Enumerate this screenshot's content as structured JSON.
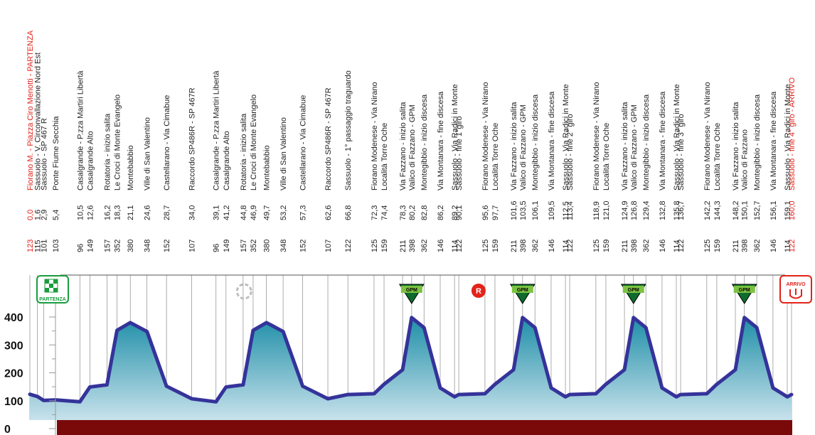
{
  "chart_data": {
    "type": "area",
    "title": "",
    "xlabel": "",
    "ylabel": "",
    "ylim": [
      0,
      480
    ],
    "xlim": [
      0,
      160
    ],
    "yticks": [
      "0",
      "100",
      "200",
      "300",
      "400"
    ],
    "grid": true,
    "colors": {
      "area_top": "#1f8fa8",
      "area_bottom": "#c8e2ec",
      "line": "#35339a",
      "base": "#7a0a0a",
      "accent": "#e2231a",
      "gpm": "#0d6b2c"
    },
    "points": [
      {
        "km": "0,0",
        "x": 0.0,
        "alt": "123",
        "y": 123,
        "label": "Fiorano M. - Piazza Ciro Menotti - PARTENZA",
        "red": true
      },
      {
        "km": "1,6",
        "x": 1.6,
        "alt": "115",
        "y": 115,
        "label": "Sassuolo - V. Circonvallazione Nord Est"
      },
      {
        "km": "2,9",
        "x": 2.9,
        "alt": "101",
        "y": 101,
        "label": "Sassuolo - SP 467 R"
      },
      {
        "km": "5,4",
        "x": 5.4,
        "alt": "103",
        "y": 103,
        "label": "Ponte Fiume Secchia"
      },
      {
        "km": "10,5",
        "x": 10.5,
        "alt": "96",
        "y": 96,
        "label": "Casalgrande - P.zza Martiri Libertà"
      },
      {
        "km": "12,6",
        "x": 12.6,
        "alt": "149",
        "y": 149,
        "label": "Casalgrande Alto"
      },
      {
        "km": "16,2",
        "x": 16.2,
        "alt": "157",
        "y": 157,
        "label": "Rotatoria - inizio salita"
      },
      {
        "km": "18,3",
        "x": 18.3,
        "alt": "352",
        "y": 352,
        "label": "Le Croci di Monte Evangelo"
      },
      {
        "km": "21,1",
        "x": 21.1,
        "alt": "380",
        "y": 380,
        "label": "Montebabbio"
      },
      {
        "km": "24,6",
        "x": 24.6,
        "alt": "348",
        "y": 348,
        "label": "Ville di San Valentino"
      },
      {
        "km": "28,7",
        "x": 28.7,
        "alt": "152",
        "y": 152,
        "label": "Castellarano - Via Cimabue"
      },
      {
        "km": "34,0",
        "x": 34.0,
        "alt": "107",
        "y": 107,
        "label": "Raccordo SP486R - SP 467R"
      },
      {
        "km": "39,1",
        "x": 39.1,
        "alt": "96",
        "y": 96,
        "label": "Casalgrande - P.zza Martiri Libertà"
      },
      {
        "km": "41,2",
        "x": 41.2,
        "alt": "149",
        "y": 149,
        "label": "Casalgrande Alto"
      },
      {
        "km": "44,8",
        "x": 44.8,
        "alt": "157",
        "y": 157,
        "label": "Rotatoria - inizio salita"
      },
      {
        "km": "46,9",
        "x": 46.9,
        "alt": "352",
        "y": 352,
        "label": "Le Croci di Monte Evangelo"
      },
      {
        "km": "49,7",
        "x": 49.7,
        "alt": "380",
        "y": 380,
        "label": "Montebabbio"
      },
      {
        "km": "53,2",
        "x": 53.2,
        "alt": "348",
        "y": 348,
        "label": "Ville di San Valentino"
      },
      {
        "km": "57,3",
        "x": 57.3,
        "alt": "152",
        "y": 152,
        "label": "Castellarano - Via Cimabue"
      },
      {
        "km": "62,6",
        "x": 62.6,
        "alt": "107",
        "y": 107,
        "label": "Raccordo SP486R - SP 467R"
      },
      {
        "km": "66,8",
        "x": 66.8,
        "alt": "122",
        "y": 122,
        "label": "Sassuolo - 1° passaggio traguardo"
      },
      {
        "km": "72,3",
        "x": 72.3,
        "alt": "125",
        "y": 125,
        "label": "Fiorano Modenese - Via Nirano"
      },
      {
        "km": "74,4",
        "x": 74.4,
        "alt": "159",
        "y": 159,
        "label": "Località Torre Oche"
      },
      {
        "km": "78,3",
        "x": 78.3,
        "alt": "211",
        "y": 211,
        "label": "Via Fazzano - inizio salita"
      },
      {
        "km": "80,2",
        "x": 80.2,
        "alt": "398",
        "y": 398,
        "label": "Valico di Fazzano - GPM"
      },
      {
        "km": "82,8",
        "x": 82.8,
        "alt": "362",
        "y": 362,
        "label": "Montegibbio - inizio discesa"
      },
      {
        "km": "86,2",
        "x": 86.2,
        "alt": "146",
        "y": 146,
        "label": "Via Montanara - fine discesa"
      },
      {
        "km": "89,2",
        "x": 89.2,
        "alt": "114",
        "y": 114,
        "label": "Sassuolo - Via Radici in Monte"
      },
      {
        "km": "90,1",
        "x": 90.1,
        "alt": "122",
        "y": 122,
        "label": "Sassuolo - fine 1°giro"
      },
      {
        "km": "95,6",
        "x": 95.6,
        "alt": "125",
        "y": 125,
        "label": "Fiorano Modenese - Via Nirano"
      },
      {
        "km": "97,7",
        "x": 97.7,
        "alt": "159",
        "y": 159,
        "label": "Località Torre Oche"
      },
      {
        "km": "101,6",
        "x": 101.6,
        "alt": "211",
        "y": 211,
        "label": "Via Fazzano - inizio salita"
      },
      {
        "km": "103,5",
        "x": 103.5,
        "alt": "398",
        "y": 398,
        "label": "Valico di Fazzano - GPM"
      },
      {
        "km": "106,1",
        "x": 106.1,
        "alt": "362",
        "y": 362,
        "label": "Montegibbio - inizio discesa"
      },
      {
        "km": "109,5",
        "x": 109.5,
        "alt": "146",
        "y": 146,
        "label": "Via Montanara - fine discesa"
      },
      {
        "km": "112,5",
        "x": 112.5,
        "alt": "114",
        "y": 114,
        "label": "Sassuolo - Via Radici in Monte"
      },
      {
        "km": "113,4",
        "x": 113.4,
        "alt": "122",
        "y": 122,
        "label": "Sassuolo - fine 2° giro"
      },
      {
        "km": "118,9",
        "x": 118.9,
        "alt": "125",
        "y": 125,
        "label": "Fiorano Modenese - Via Nirano"
      },
      {
        "km": "121,0",
        "x": 121.0,
        "alt": "159",
        "y": 159,
        "label": "Località Torre Oche"
      },
      {
        "km": "124,9",
        "x": 124.9,
        "alt": "211",
        "y": 211,
        "label": "Via Fazzano - inizio salita"
      },
      {
        "km": "126,8",
        "x": 126.8,
        "alt": "398",
        "y": 398,
        "label": "Valico di Fazzano - GPM"
      },
      {
        "km": "129,4",
        "x": 129.4,
        "alt": "362",
        "y": 362,
        "label": "Montegibbio - inizio discesa"
      },
      {
        "km": "132,8",
        "x": 132.8,
        "alt": "146",
        "y": 146,
        "label": "Via Montanara - fine discesa"
      },
      {
        "km": "135,8",
        "x": 135.8,
        "alt": "114",
        "y": 114,
        "label": "Sassuolo - Via Radici in Monte"
      },
      {
        "km": "136,7",
        "x": 136.7,
        "alt": "122",
        "y": 122,
        "label": "Sassuolo - fine 3° giro"
      },
      {
        "km": "142,2",
        "x": 142.2,
        "alt": "125",
        "y": 125,
        "label": "Fiorano Modenese - Via Nirano"
      },
      {
        "km": "144,3",
        "x": 144.3,
        "alt": "159",
        "y": 159,
        "label": "Località Torre Oche"
      },
      {
        "km": "148,2",
        "x": 148.2,
        "alt": "211",
        "y": 211,
        "label": "Via Fazzano - inizio salita"
      },
      {
        "km": "150,1",
        "x": 150.1,
        "alt": "398",
        "y": 398,
        "label": "Valico di Fazzano"
      },
      {
        "km": "152,7",
        "x": 152.7,
        "alt": "362",
        "y": 362,
        "label": "Montegibbio - inizio discesa"
      },
      {
        "km": "156,1",
        "x": 156.1,
        "alt": "146",
        "y": 146,
        "label": "Via Montanara - fine discesa"
      },
      {
        "km": "159,1",
        "x": 159.1,
        "alt": "114",
        "y": 114,
        "label": "Sassuolo - Via Radici in Monte"
      },
      {
        "km": "160,0",
        "x": 160.0,
        "alt": "122",
        "y": 122,
        "label": "Sassuolo - fine 4° giro - ARRIVO",
        "red": true
      }
    ],
    "markers": [
      {
        "type": "start",
        "x": 0.0,
        "text": "PARTENZA"
      },
      {
        "type": "sprint",
        "x": 45.0
      },
      {
        "type": "gpm",
        "x": 80.2,
        "text": "GPM"
      },
      {
        "type": "refresh",
        "x": 95.6,
        "text": "R"
      },
      {
        "type": "gpm",
        "x": 103.5,
        "text": "GPM"
      },
      {
        "type": "gpm",
        "x": 126.8,
        "text": "GPM"
      },
      {
        "type": "gpm",
        "x": 150.1,
        "text": "GPM"
      },
      {
        "type": "finish",
        "x": 160.0,
        "text": "ARRIVO"
      }
    ]
  }
}
